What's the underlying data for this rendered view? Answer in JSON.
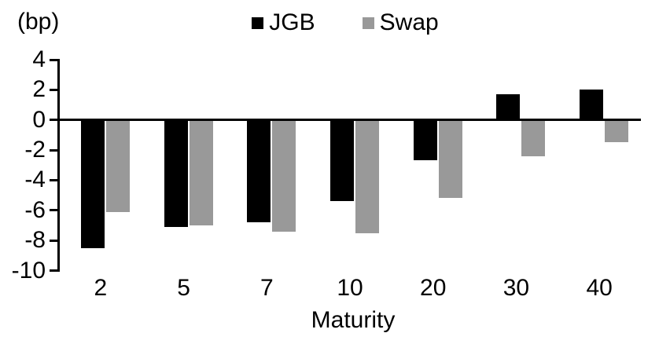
{
  "chart_data": {
    "type": "bar",
    "title": "",
    "ylabel": "(bp)",
    "xlabel": "Maturity",
    "categories": [
      "2",
      "5",
      "7",
      "10",
      "20",
      "30",
      "40"
    ],
    "series": [
      {
        "name": "JGB",
        "color": "#000000",
        "values": [
          -8.5,
          -7.1,
          -6.8,
          -5.4,
          -2.7,
          1.7,
          2.0
        ]
      },
      {
        "name": "Swap",
        "color": "#999999",
        "values": [
          -6.1,
          -7.0,
          -7.4,
          -7.5,
          -5.2,
          -2.4,
          -1.5
        ]
      }
    ],
    "ylim": [
      -10,
      4
    ],
    "ytick_step": 2,
    "yticks": [
      4,
      2,
      0,
      -2,
      -4,
      -6,
      -8,
      -10
    ],
    "grid": false,
    "legend_position": "top",
    "axis_color": "#000000",
    "background": "#ffffff"
  }
}
